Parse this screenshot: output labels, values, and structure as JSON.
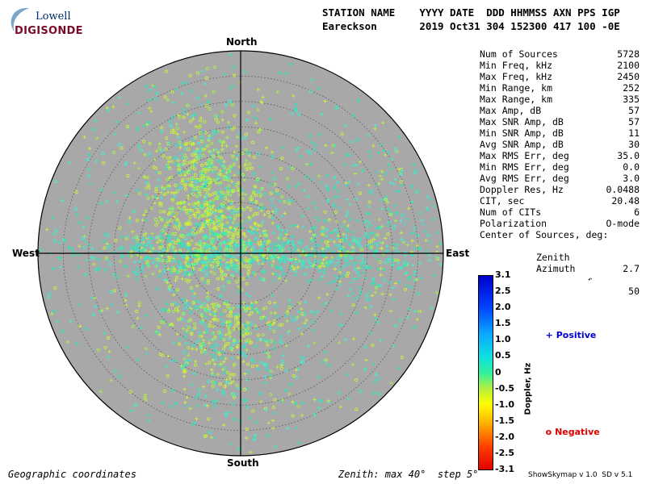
{
  "logo": {
    "line1": "Lowell",
    "line2": "DIGISONDE"
  },
  "header": {
    "row1": "STATION NAME    YYYY DATE  DDD HHMMSS AXN PPS IGP",
    "row2": "Eareckson       2019 Oct31 304 152300 417 100 -0E"
  },
  "stats": [
    {
      "label": "Num of Sources",
      "value": "5728"
    },
    {
      "label": "Min Freq, kHz",
      "value": "2100"
    },
    {
      "label": "Max Freq, kHz",
      "value": "2450"
    },
    {
      "label": "Min Range, km",
      "value": "252"
    },
    {
      "label": "Max Range, km",
      "value": "335"
    },
    {
      "label": "Max Amp, dB",
      "value": "57"
    },
    {
      "label": "Max SNR Amp, dB",
      "value": "57"
    },
    {
      "label": "Min SNR Amp, dB",
      "value": "11"
    },
    {
      "label": "Avg SNR Amp, dB",
      "value": "30"
    },
    {
      "label": "Max RMS Err, deg",
      "value": "35.0"
    },
    {
      "label": "Min RMS Err, deg",
      "value": "0.0"
    },
    {
      "label": "Avg RMS Err, deg",
      "value": "3.0"
    },
    {
      "label": "Doppler Res, Hz",
      "value": "0.0488"
    },
    {
      "label": "CIT, sec",
      "value": "20.48"
    },
    {
      "label": "Num of CITs",
      "value": "6"
    },
    {
      "label": "Polarization",
      "value": "O-mode"
    }
  ],
  "center": {
    "title": "Center of Sources, deg:",
    "zenith_label": "Zenith",
    "zenith_value": "2.7",
    "azimuth_label": "Azimuth",
    "azimuth_value": "50"
  },
  "directions": {
    "north": "North",
    "south": "South",
    "west": "West",
    "east": "East"
  },
  "footer": {
    "left": "Geographic coordinates",
    "center": "Zenith: max 40°  step 5°",
    "right": "ShowSkymap v 1.0  SD v 5.1"
  },
  "colorbar": {
    "axis_label": "Doppler, Hz",
    "ticks": [
      "3.1",
      "2.5",
      "2.0",
      "1.5",
      "1.0",
      "0.5",
      "0",
      "-0.5",
      "-1.0",
      "-1.5",
      "-2.0",
      "-2.5",
      "-3.1"
    ]
  },
  "legend": {
    "positive_symbol": "+",
    "positive_label": "Positive",
    "positive_color": "#0000cc",
    "negative_symbol": "o",
    "negative_label": "Negative",
    "negative_color": "#dd0000"
  },
  "plot": {
    "background": "#a8a8a8",
    "max_zenith_deg": 40,
    "step_deg": 5
  }
}
